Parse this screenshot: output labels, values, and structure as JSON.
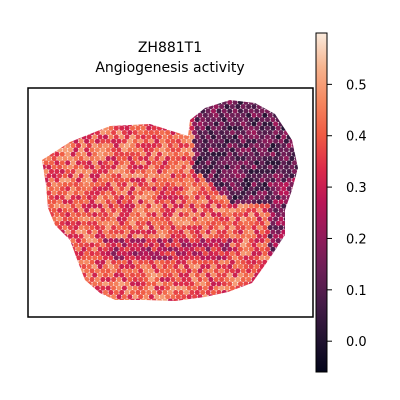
{
  "chart_data": {
    "type": "heatmap",
    "title": "ZH881T1",
    "subtitle": "Angiogenesis activity",
    "xlabel": "",
    "ylabel": "",
    "grid": false,
    "legend": "colorbar-right",
    "colormap": "rocket",
    "colorbar": {
      "range": [
        -0.06,
        0.6
      ],
      "ticks": [
        0.0,
        0.1,
        0.2,
        0.3,
        0.4,
        0.5
      ],
      "tick_labels": [
        "0.0",
        "0.1",
        "0.2",
        "0.3",
        "0.4",
        "0.5"
      ]
    },
    "regions": [
      {
        "name": "main tissue body",
        "mean_value": 0.4
      },
      {
        "name": "upper-right lobe",
        "mean_value": 0.12
      },
      {
        "name": "bottom-middle band",
        "mean_value": 0.2
      }
    ]
  },
  "colors": {
    "frame": "#000000",
    "background": "#ffffff"
  }
}
